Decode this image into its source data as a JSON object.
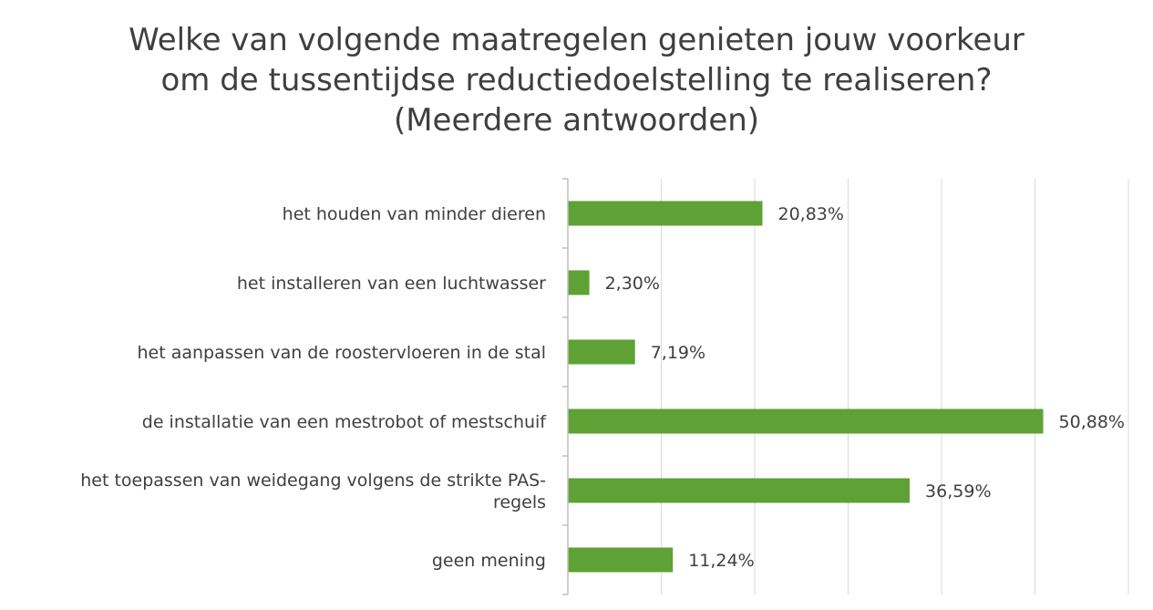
{
  "chart_data": {
    "type": "bar",
    "orientation": "horizontal",
    "title_lines": [
      "Welke van volgende maatregelen genieten jouw voorkeur",
      "om de tussentijdse reductiedoelstelling te realiseren?",
      "(Meerdere antwoorden)"
    ],
    "categories": [
      [
        "het houden van minder dieren"
      ],
      [
        "het installeren van een luchtwasser"
      ],
      [
        "het aanpassen van de roostervloeren in de stal"
      ],
      [
        "de installatie van een mestrobot of mestschuif"
      ],
      [
        "het toepassen van weidegang volgens de strikte PAS-",
        "regels"
      ],
      [
        "geen mening"
      ]
    ],
    "values": [
      20.83,
      2.3,
      7.19,
      50.88,
      36.59,
      11.24
    ],
    "data_labels": [
      "20,83%",
      "2,30%",
      "7,19%",
      "50,88%",
      "36,59%",
      "11,24%"
    ],
    "xlim": [
      0,
      60
    ],
    "gridlines": true,
    "bar_color": "#5ea135",
    "grid_color": "#d9d9d9",
    "axis_color": "#bfbfbf"
  }
}
